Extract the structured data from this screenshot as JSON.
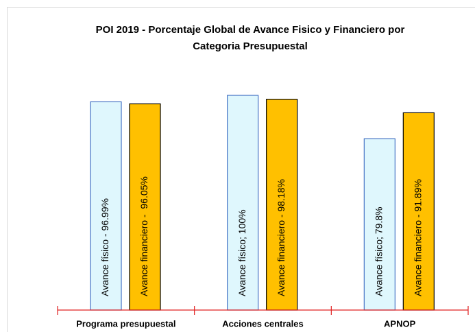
{
  "chart_data": {
    "type": "bar",
    "title": "POI 2019 - Porcentaje Global de Avance Fisico y Financiero por",
    "subtitle": "Categoria Presupuestal",
    "categories": [
      "Programa presupuestal",
      "Acciones centrales",
      "APNOP"
    ],
    "series": [
      {
        "color": "#dff7fd",
        "values": [
          96.99,
          100,
          79.8
        ],
        "value_labels": [
          "Avance físico - 96.99%",
          "Avance físico; 100%",
          "Avance físico; 79.8%"
        ]
      },
      {
        "color": "#ffc000",
        "values": [
          96.05,
          98.18,
          91.89
        ],
        "value_labels": [
          "Avance financiero -  96.05%",
          "Avance financiero - 98.18%",
          "Avance financiero - 91.89%"
        ]
      }
    ],
    "ylim": [
      0,
      100
    ]
  }
}
